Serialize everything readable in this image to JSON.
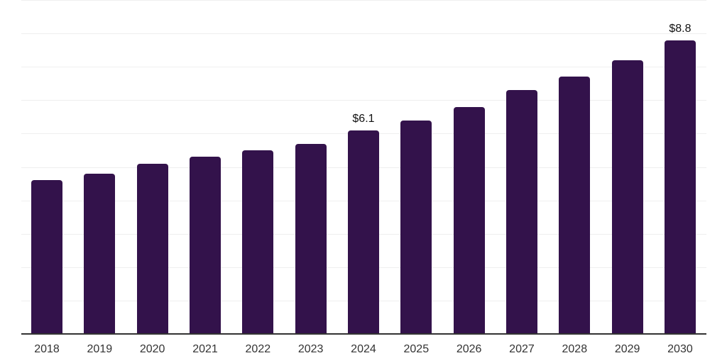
{
  "chart_data": {
    "type": "bar",
    "categories": [
      "2018",
      "2019",
      "2020",
      "2021",
      "2022",
      "2023",
      "2024",
      "2025",
      "2026",
      "2027",
      "2028",
      "2029",
      "2030"
    ],
    "values": [
      4.6,
      4.8,
      5.1,
      5.3,
      5.5,
      5.7,
      6.1,
      6.4,
      6.8,
      7.3,
      7.7,
      8.2,
      8.8
    ],
    "data_labels": [
      "",
      "",
      "",
      "",
      "",
      "",
      "$6.1",
      "",
      "",
      "",
      "",
      "",
      "$8.8"
    ],
    "title": "",
    "xlabel": "",
    "ylabel": "",
    "ylim": [
      0,
      10
    ],
    "grid": true,
    "legend": "none",
    "bar_color": "#33124B",
    "gridline_color": "#efefef",
    "axis_line_color": "#333333",
    "tick_label_color": "#333333",
    "data_label_color": "#111111",
    "background_color": "#ffffff"
  }
}
